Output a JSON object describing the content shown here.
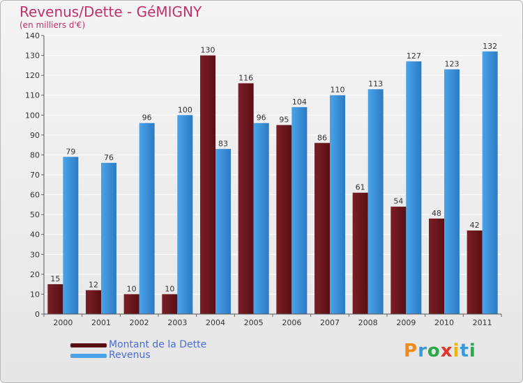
{
  "title": "Revenus/Dette - GéMIGNY",
  "subtitle": "(en milliers d'€)",
  "colors": {
    "dette": "#7a1f26",
    "dette_dark": "#5a0f14",
    "revenus": "#4aa3e8",
    "revenus_dark": "#2c7bc4",
    "title": "#c0306a",
    "legend_text": "#4a6cd6"
  },
  "chart_data": {
    "type": "bar",
    "categories": [
      "2000",
      "2001",
      "2002",
      "2003",
      "2004",
      "2005",
      "2006",
      "2007",
      "2008",
      "2009",
      "2010",
      "2011"
    ],
    "series": [
      {
        "name": "Montant de la Dette",
        "values": [
          15,
          12,
          10,
          10,
          130,
          116,
          95,
          86,
          61,
          54,
          48,
          42
        ]
      },
      {
        "name": "Revenus",
        "values": [
          79,
          76,
          96,
          100,
          83,
          96,
          104,
          110,
          113,
          127,
          123,
          132
        ]
      }
    ],
    "yticks": [
      0,
      10,
      20,
      30,
      40,
      50,
      60,
      70,
      80,
      90,
      100,
      110,
      120,
      130,
      140
    ],
    "ylim": [
      0,
      140
    ],
    "grid": true,
    "legend": "bottom-left"
  },
  "logo": {
    "letters": [
      "P",
      "r",
      "o",
      "x",
      "i",
      "t",
      "i"
    ],
    "colors": [
      "#f08a1c",
      "#3a9ad9",
      "#2aa84a",
      "#e2342a",
      "#f0b400",
      "#3a9ad9",
      "#2aa84a"
    ]
  }
}
